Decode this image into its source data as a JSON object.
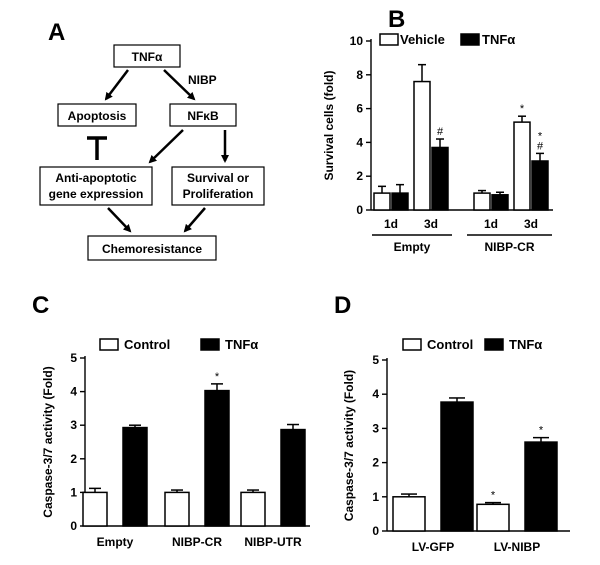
{
  "panel_a": {
    "letter": "A",
    "nodes": {
      "tnfa": "TNFα",
      "nibp": "NIBP",
      "apoptosis": "Apoptosis",
      "nfkb": "NFκB",
      "anti_line1": "Anti-apoptotic",
      "anti_line2": "gene expression",
      "surv_line1": "Survival or",
      "surv_line2": "Proliferation",
      "chemo": "Chemoresistance"
    }
  },
  "chart_data": [
    {
      "id": "B",
      "type": "bar",
      "letter": "B",
      "ylabel": "Survival cells (fold)",
      "ylim": [
        0,
        10
      ],
      "yticks": [
        0,
        2,
        4,
        6,
        8,
        10
      ],
      "legend": [
        {
          "name": "Vehicle",
          "fill": "#ffffff"
        },
        {
          "name": "TNFα",
          "fill": "#000000"
        }
      ],
      "groups": [
        {
          "label": "Empty",
          "subgroups": [
            {
              "label": "1d",
              "values": [
                1.0,
                1.0
              ],
              "errors": [
                0.4,
                0.5
              ],
              "sig": [
                "",
                ""
              ]
            },
            {
              "label": "3d",
              "values": [
                7.6,
                3.7
              ],
              "errors": [
                1.0,
                0.5
              ],
              "sig": [
                "",
                "#"
              ]
            }
          ]
        },
        {
          "label": "NIBP-CR",
          "subgroups": [
            {
              "label": "1d",
              "values": [
                1.0,
                0.9
              ],
              "errors": [
                0.15,
                0.15
              ],
              "sig": [
                "",
                ""
              ]
            },
            {
              "label": "3d",
              "values": [
                5.2,
                2.9
              ],
              "errors": [
                0.35,
                0.45
              ],
              "sig": [
                "*",
                "*\n#"
              ]
            }
          ]
        }
      ]
    },
    {
      "id": "C",
      "type": "bar",
      "letter": "C",
      "ylabel": "Caspase-3/7 activity (Fold)",
      "ylim": [
        0,
        5
      ],
      "yticks": [
        0,
        1,
        2,
        3,
        4,
        5
      ],
      "legend": [
        {
          "name": "Control",
          "fill": "#ffffff"
        },
        {
          "name": "TNFα",
          "fill": "#000000"
        }
      ],
      "categories": [
        "Empty",
        "NIBP-CR",
        "NIBP-UTR"
      ],
      "series": [
        {
          "name": "Control",
          "values": [
            1.0,
            1.0,
            1.0
          ],
          "errors": [
            0.12,
            0.07,
            0.07
          ],
          "sig": [
            "",
            "",
            ""
          ]
        },
        {
          "name": "TNFα",
          "values": [
            2.93,
            4.03,
            2.87
          ],
          "errors": [
            0.07,
            0.2,
            0.15
          ],
          "sig": [
            "",
            "*",
            ""
          ]
        }
      ]
    },
    {
      "id": "D",
      "type": "bar",
      "letter": "D",
      "ylabel": "Caspase-3/7 activity (Fold)",
      "ylim": [
        0,
        5
      ],
      "yticks": [
        0,
        1,
        2,
        3,
        4,
        5
      ],
      "legend": [
        {
          "name": "Control",
          "fill": "#ffffff"
        },
        {
          "name": "TNFα",
          "fill": "#000000"
        }
      ],
      "categories": [
        "LV-GFP",
        "LV-NIBP"
      ],
      "series": [
        {
          "name": "Control",
          "values": [
            1.0,
            0.78
          ],
          "errors": [
            0.08,
            0.05
          ],
          "sig": [
            "",
            "*"
          ]
        },
        {
          "name": "TNFα",
          "values": [
            3.77,
            2.6
          ],
          "errors": [
            0.12,
            0.13
          ],
          "sig": [
            "",
            "*"
          ]
        }
      ]
    }
  ]
}
